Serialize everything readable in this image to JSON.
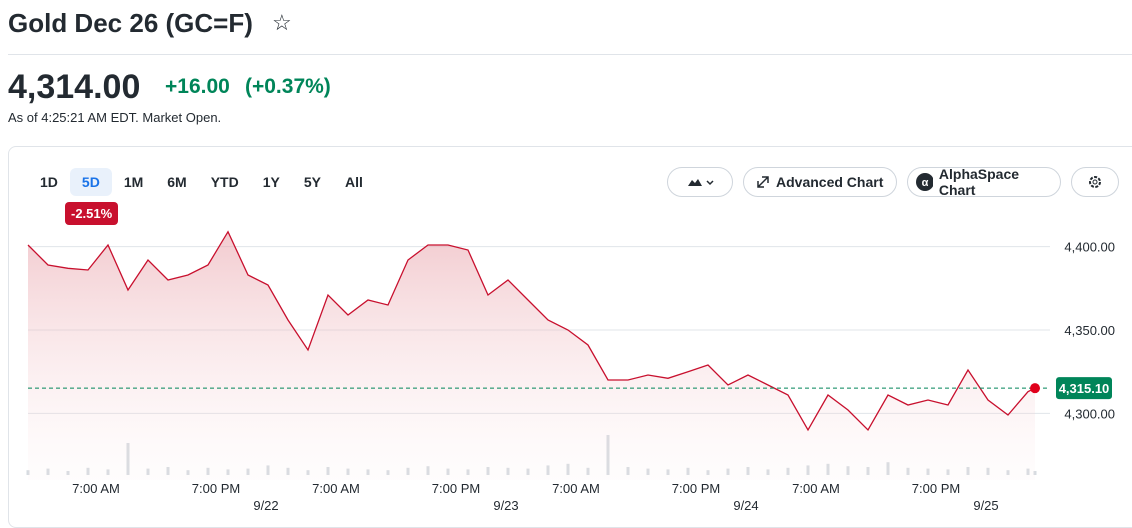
{
  "header": {
    "title": "Gold Dec 26 (GC=F)",
    "price": "4,314.00",
    "change": "+16.00",
    "change_percent": "(+0.37%)",
    "as_of": "As of 4:25:21 AM EDT. Market Open."
  },
  "toolbar": {
    "ranges": [
      "1D",
      "5D",
      "1M",
      "6M",
      "YTD",
      "1Y",
      "5Y",
      "All"
    ],
    "active_range_badge": "-2.51%",
    "buttons": [
      "Advanced Chart",
      "AlphaSpace Chart"
    ]
  },
  "chart_data": {
    "type": "line",
    "x": [
      0,
      2,
      4,
      6,
      8,
      10,
      12,
      14,
      16,
      18,
      20,
      22,
      24,
      26,
      28,
      30,
      32,
      34,
      36,
      38,
      40,
      42,
      44,
      46,
      48,
      50,
      52,
      54,
      56,
      58,
      60,
      62,
      64,
      66,
      68,
      70,
      72,
      74,
      76,
      78,
      80,
      82,
      84,
      86,
      88,
      90,
      92,
      94,
      96,
      98,
      100,
      100.7
    ],
    "series": [
      {
        "name": "GC=F",
        "color": "#c8102e",
        "values": [
          4401,
          4389,
          4387,
          4386,
          4401,
          4374,
          4392,
          4380,
          4383,
          4389,
          4409,
          4383,
          4377,
          4356,
          4338,
          4371,
          4359,
          4368,
          4365,
          4392,
          4401,
          4401,
          4398,
          4371,
          4380,
          4368,
          4356,
          4350,
          4341,
          4320,
          4320,
          4323,
          4321,
          4325,
          4329,
          4317,
          4323,
          4317,
          4311,
          4290,
          4311,
          4302,
          4290,
          4311,
          4305,
          4308,
          4305,
          4326,
          4308,
          4299,
          4313,
          4315.1
        ]
      }
    ],
    "volume": [
      6,
      8,
      5,
      9,
      7,
      40,
      8,
      10,
      6,
      9,
      7,
      8,
      12,
      9,
      6,
      10,
      8,
      7,
      6,
      9,
      11,
      8,
      7,
      10,
      9,
      8,
      12,
      14,
      9,
      50,
      10,
      8,
      7,
      9,
      6,
      8,
      10,
      7,
      9,
      12,
      14,
      11,
      10,
      16,
      9,
      8,
      7,
      10,
      9,
      6,
      8,
      5
    ],
    "vlim": [
      0,
      100
    ],
    "current": {
      "value": 4315.1,
      "label": "4,315.10"
    },
    "xlim": [
      0,
      100.7
    ],
    "ylim": [
      4260,
      4410
    ],
    "yticks": [
      {
        "value": 4300,
        "label": "4,300.00"
      },
      {
        "value": 4350,
        "label": "4,350.00"
      },
      {
        "value": 4400,
        "label": "4,400.00"
      }
    ],
    "xticks": [
      {
        "value": 6.8,
        "label": "7:00 AM"
      },
      {
        "value": 18.8,
        "label": "7:00 PM"
      },
      {
        "value": 30.8,
        "label": "7:00 AM"
      },
      {
        "value": 42.8,
        "label": "7:00 PM"
      },
      {
        "value": 54.8,
        "label": "7:00 AM"
      },
      {
        "value": 66.8,
        "label": "7:00 PM"
      },
      {
        "value": 78.8,
        "label": "7:00 AM"
      },
      {
        "value": 90.8,
        "label": "7:00 PM"
      }
    ],
    "xdates": [
      {
        "value": 23.8,
        "label": "9/22"
      },
      {
        "value": 47.8,
        "label": "9/23"
      },
      {
        "value": 71.8,
        "label": "9/24"
      },
      {
        "value": 95.8,
        "label": "9/25"
      }
    ],
    "grid": true
  }
}
